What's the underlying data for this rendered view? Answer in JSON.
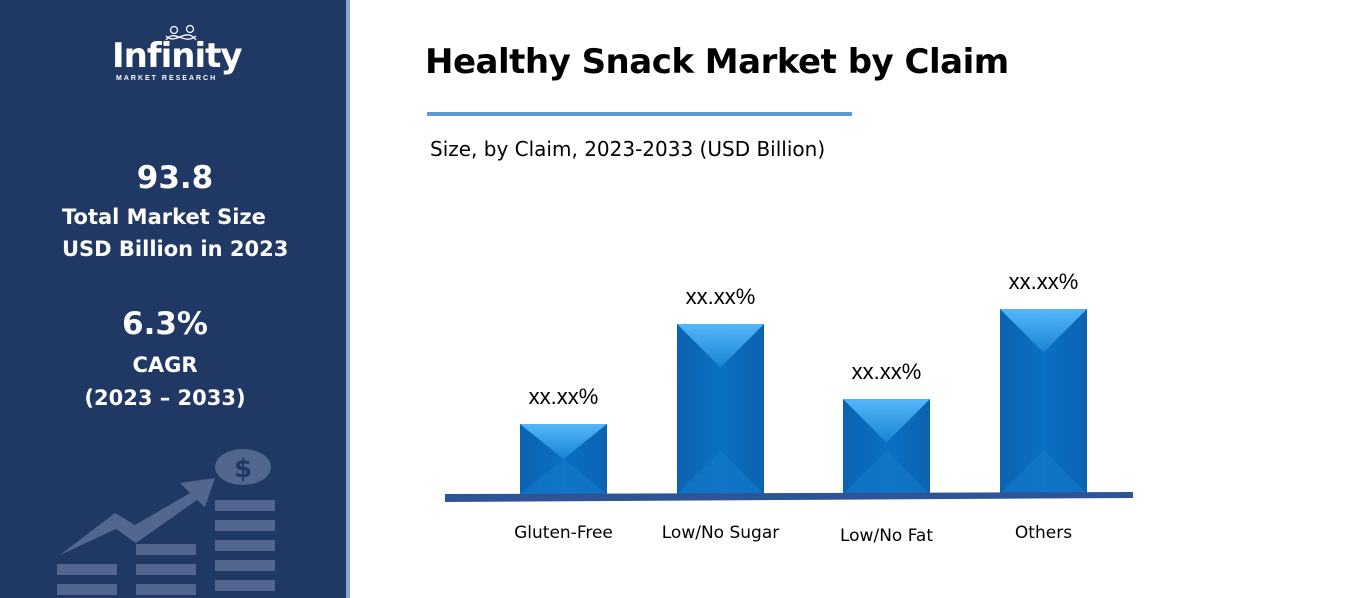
{
  "sidebar": {
    "logo_text": "Infinity",
    "logo_subtext": "MARKET RESEARCH",
    "market_size_value": "93.8",
    "market_size_label_1": "Total Market Size",
    "market_size_label_2": "USD Billion in 2023",
    "cagr_value": "6.3%",
    "cagr_label": "CAGR",
    "cagr_period": "(2023 – 2033)",
    "decor_icon": "growth-chart-dollar-icon"
  },
  "header": {
    "title": "Healthy Snack Market by Claim",
    "subtitle": "Size, by Claim, 2023-2033 (USD Billion)"
  },
  "colors": {
    "sidebar": "#1f3864",
    "bar": "#0a6fc2",
    "bar_light": "#45b0f5",
    "axis": "#2e5496",
    "title_rule": "#5b9bd5"
  },
  "chart_data": {
    "type": "bar",
    "title": "Healthy Snack Market by Claim",
    "subtitle": "Size, by Claim, 2023-2033 (USD Billion)",
    "categories": [
      "Gluten-Free",
      "Low/No Sugar",
      "Low/No Fat",
      "Others"
    ],
    "values": [
      70,
      170,
      95,
      185
    ],
    "data_labels": [
      "xx.xx%",
      "xx.xx%",
      "xx.xx%",
      "xx.xx%"
    ],
    "xlabel": "",
    "ylabel": "",
    "grid": false,
    "legend": "none"
  }
}
